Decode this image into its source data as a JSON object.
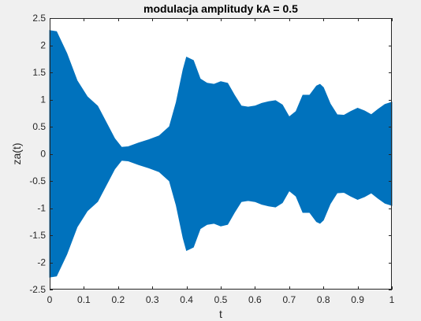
{
  "colors": {
    "figure_background": "#f0f0f0",
    "axes_background": "#ffffff",
    "axis_color": "#262626",
    "series_color": "#0072bd"
  },
  "chart_data": {
    "type": "area",
    "title": "modulacja amplitudy kA = 0.5",
    "xlabel": "t",
    "ylabel": "za(t)",
    "xlim": [
      0,
      1
    ],
    "ylim": [
      -2.5,
      2.5
    ],
    "xticks": [
      0,
      0.1,
      0.2,
      0.3,
      0.4,
      0.5,
      0.6,
      0.7,
      0.8,
      0.9,
      1
    ],
    "xtick_labels": [
      "0",
      "0.1",
      "0.2",
      "0.3",
      "0.4",
      "0.5",
      "0.6",
      "0.7",
      "0.8",
      "0.9",
      "1"
    ],
    "yticks": [
      -2.5,
      -2,
      -1.5,
      -1,
      -0.5,
      0,
      0.5,
      1,
      1.5,
      2,
      2.5
    ],
    "ytick_labels": [
      "-2.5",
      "-2",
      "-1.5",
      "-1",
      "-0.5",
      "0",
      "0.5",
      "1",
      "1.5",
      "2",
      "2.5"
    ],
    "grid": false,
    "legend": "none",
    "series": [
      {
        "description_of_fill": "dense oscillation between +envelope and -envelope",
        "x": [
          0,
          0.02,
          0.05,
          0.08,
          0.11,
          0.14,
          0.17,
          0.19,
          0.21,
          0.23,
          0.26,
          0.29,
          0.32,
          0.35,
          0.37,
          0.39,
          0.4,
          0.42,
          0.44,
          0.46,
          0.48,
          0.5,
          0.52,
          0.54,
          0.56,
          0.58,
          0.6,
          0.62,
          0.64,
          0.66,
          0.68,
          0.7,
          0.72,
          0.74,
          0.76,
          0.78,
          0.79,
          0.8,
          0.82,
          0.84,
          0.86,
          0.88,
          0.9,
          0.92,
          0.94,
          0.96,
          0.98,
          1.0
        ],
        "envelope": [
          2.27,
          2.25,
          1.85,
          1.35,
          1.05,
          0.88,
          0.52,
          0.28,
          0.12,
          0.13,
          0.2,
          0.26,
          0.33,
          0.5,
          0.95,
          1.55,
          1.78,
          1.72,
          1.38,
          1.3,
          1.28,
          1.33,
          1.3,
          1.08,
          0.88,
          0.86,
          0.88,
          0.93,
          0.96,
          0.98,
          0.9,
          0.68,
          0.78,
          1.08,
          1.08,
          1.25,
          1.28,
          1.22,
          0.92,
          0.72,
          0.71,
          0.78,
          0.84,
          0.79,
          0.72,
          0.82,
          0.91,
          0.95
        ]
      }
    ]
  }
}
